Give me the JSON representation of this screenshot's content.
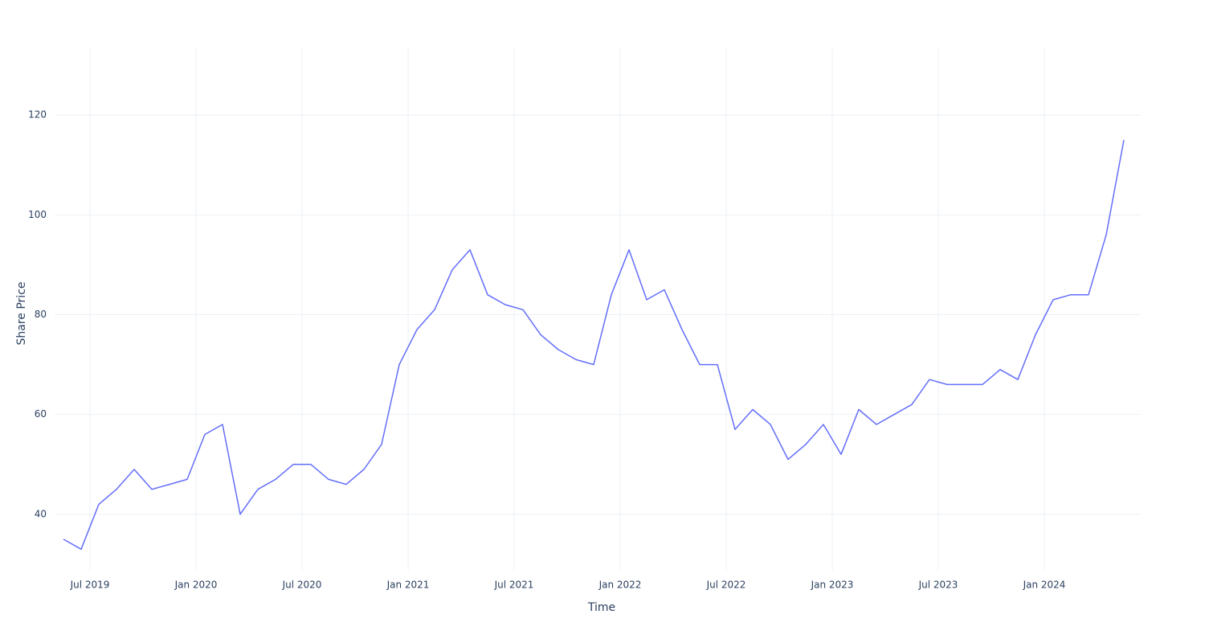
{
  "chart_data": {
    "type": "line",
    "x_label": "Time",
    "y_label": "Share Price",
    "x": [
      "2019-05",
      "2019-06",
      "2019-07",
      "2019-08",
      "2019-09",
      "2019-10",
      "2019-11",
      "2019-12",
      "2020-01",
      "2020-02",
      "2020-03",
      "2020-04",
      "2020-05",
      "2020-06",
      "2020-07",
      "2020-08",
      "2020-09",
      "2020-10",
      "2020-11",
      "2020-12",
      "2021-01",
      "2021-02",
      "2021-03",
      "2021-04",
      "2021-05",
      "2021-06",
      "2021-07",
      "2021-08",
      "2021-09",
      "2021-10",
      "2021-11",
      "2021-12",
      "2022-01",
      "2022-02",
      "2022-03",
      "2022-04",
      "2022-05",
      "2022-06",
      "2022-07",
      "2022-08",
      "2022-09",
      "2022-10",
      "2022-11",
      "2022-12",
      "2023-01",
      "2023-02",
      "2023-03",
      "2023-04",
      "2023-05",
      "2023-06",
      "2023-07",
      "2023-08",
      "2023-09",
      "2023-10",
      "2023-11",
      "2023-12",
      "2024-01",
      "2024-02",
      "2024-03",
      "2024-04",
      "2024-05"
    ],
    "series": [
      {
        "name": "Share Price",
        "color": "#636efa",
        "values": [
          35,
          33,
          42,
          45,
          49,
          45,
          46,
          47,
          56,
          58,
          40,
          45,
          47,
          50,
          50,
          47,
          46,
          49,
          54,
          70,
          77,
          81,
          89,
          93,
          84,
          82,
          81,
          76,
          73,
          71,
          70,
          84,
          93,
          83,
          85,
          77,
          70,
          70,
          57,
          61,
          58,
          51,
          54,
          58,
          52,
          61,
          58,
          60,
          62,
          67,
          66,
          66,
          66,
          69,
          67,
          76,
          83,
          84,
          84,
          96,
          115
        ]
      }
    ],
    "xlim": [
      "2019-05",
      "2024-06"
    ],
    "xticks": [
      {
        "value": "2019-07",
        "label": "Jul 2019"
      },
      {
        "value": "2020-01",
        "label": "Jan 2020"
      },
      {
        "value": "2020-07",
        "label": "Jul 2020"
      },
      {
        "value": "2021-01",
        "label": "Jan 2021"
      },
      {
        "value": "2021-07",
        "label": "Jul 2021"
      },
      {
        "value": "2022-01",
        "label": "Jan 2022"
      },
      {
        "value": "2022-07",
        "label": "Jul 2022"
      },
      {
        "value": "2023-01",
        "label": "Jan 2023"
      },
      {
        "value": "2023-07",
        "label": "Jul 2023"
      },
      {
        "value": "2024-01",
        "label": "Jan 2024"
      }
    ],
    "ylim": [
      28.7,
      133.4
    ],
    "yticks": [
      40,
      60,
      80,
      100,
      120
    ],
    "grid": true
  }
}
